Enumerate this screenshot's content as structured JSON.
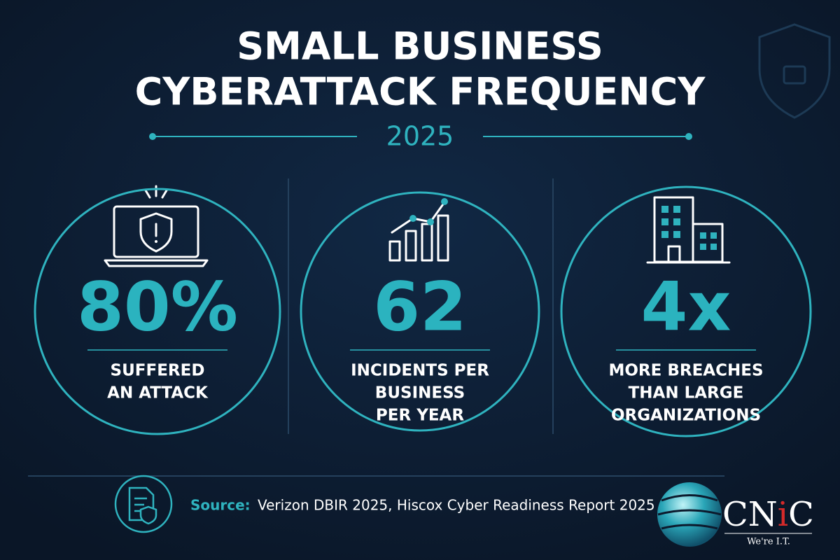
{
  "header": {
    "title_lines": [
      "SMALL BUSINESS",
      "CYBERATTACK FREQUENCY"
    ],
    "year": "2025"
  },
  "stats": [
    {
      "value": "80%",
      "label_lines": [
        "SUFFERED",
        "AN ATTACK"
      ]
    },
    {
      "value": "62",
      "label_lines": [
        "INCIDENTS PER",
        "BUSINESS",
        "PER YEAR"
      ]
    },
    {
      "value": "4x",
      "label_lines": [
        "MORE BREACHES",
        "THAN LARGE",
        "ORGANIZATIONS"
      ]
    }
  ],
  "footer": {
    "source_label": "Source:",
    "source_text": "Verizon DBIR 2025, Hiscox Cyber Readiness Report 2025"
  },
  "logo": {
    "name_parts": [
      "CN",
      "i",
      "C"
    ],
    "tagline": "We're I.T."
  }
}
